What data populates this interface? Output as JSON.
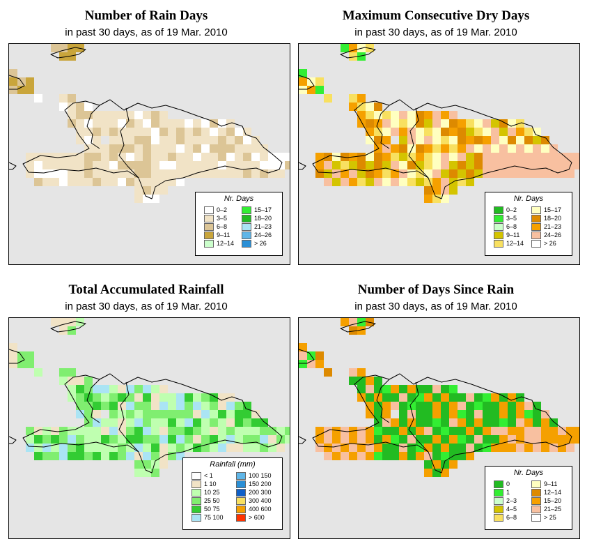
{
  "panels": [
    {
      "title": "Number of Rain Days",
      "subtitle": "in past 30 days, as of  19 Mar. 2010",
      "legend": {
        "title": "Nr. Days",
        "items": [
          {
            "label": "0–2",
            "color": "#ffffff"
          },
          {
            "label": "3–5",
            "color": "#f1e3c6"
          },
          {
            "label": "6–8",
            "color": "#dcc596"
          },
          {
            "label": "9–11",
            "color": "#c9a53b"
          },
          {
            "label": "12–14",
            "color": "#ccffcc"
          },
          {
            "label": "15–17",
            "color": "#33ee33"
          },
          {
            "label": "18–20",
            "color": "#22bb22"
          },
          {
            "label": "21–23",
            "color": "#aae4f4"
          },
          {
            "label": "24–26",
            "color": "#5fb6e8"
          },
          {
            "label": "> 26",
            "color": "#2a8fd6"
          }
        ]
      }
    },
    {
      "title": "Maximum Consecutive Dry Days",
      "subtitle": "in past 30 days, as of  19 Mar. 2010",
      "legend": {
        "title": "Nr. Days",
        "items": [
          {
            "label": "0–2",
            "color": "#22bb22"
          },
          {
            "label": "3–5",
            "color": "#33ee33"
          },
          {
            "label": "6–8",
            "color": "#ccffcc"
          },
          {
            "label": "9–11",
            "color": "#d4c400"
          },
          {
            "label": "12–14",
            "color": "#f8e060"
          },
          {
            "label": "15–17",
            "color": "#ffffc0"
          },
          {
            "label": "18–20",
            "color": "#dd8a00"
          },
          {
            "label": "21–23",
            "color": "#f5a000"
          },
          {
            "label": "24–26",
            "color": "#f8c0a0"
          },
          {
            "label": "> 26",
            "color": "#ffffff"
          }
        ]
      }
    },
    {
      "title": "Total Accumulated Rainfall",
      "subtitle": "in past 30 days, as of  19 Mar. 2010",
      "legend": {
        "title": "Rainfall (mm)",
        "items": [
          {
            "label": "< 1",
            "color": "#ffffff"
          },
          {
            "label": "1   10",
            "color": "#f1e3c6"
          },
          {
            "label": "10   25",
            "color": "#bfffb0"
          },
          {
            "label": "25   50",
            "color": "#80ee70"
          },
          {
            "label": "50   75",
            "color": "#33cc33"
          },
          {
            "label": "75  100",
            "color": "#aae4f4"
          },
          {
            "label": "100  150",
            "color": "#5fb6e8"
          },
          {
            "label": "150  200",
            "color": "#2a8fd6"
          },
          {
            "label": "200  300",
            "color": "#1060c8"
          },
          {
            "label": "300  400",
            "color": "#f8e060"
          },
          {
            "label": "400  600",
            "color": "#f5a000"
          },
          {
            "label": "> 600",
            "color": "#ff3300"
          }
        ]
      }
    },
    {
      "title": "Number of Days Since Rain",
      "subtitle": "in past 30 days, as of  19 Mar. 2010",
      "legend": {
        "title": "Nr. Days",
        "items": [
          {
            "label": "0",
            "color": "#22bb22"
          },
          {
            "label": "1",
            "color": "#33ee33"
          },
          {
            "label": "2–3",
            "color": "#ccffcc"
          },
          {
            "label": "4–5",
            "color": "#d4c400"
          },
          {
            "label": "6–8",
            "color": "#f8e060"
          },
          {
            "label": "9–11",
            "color": "#ffffc0"
          },
          {
            "label": "12–14",
            "color": "#dd8a00"
          },
          {
            "label": "15–20",
            "color": "#f5a000"
          },
          {
            "label": "21–25",
            "color": "#f8c0a0"
          },
          {
            "label": "> 25",
            "color": "#ffffff"
          }
        ]
      }
    }
  ]
}
